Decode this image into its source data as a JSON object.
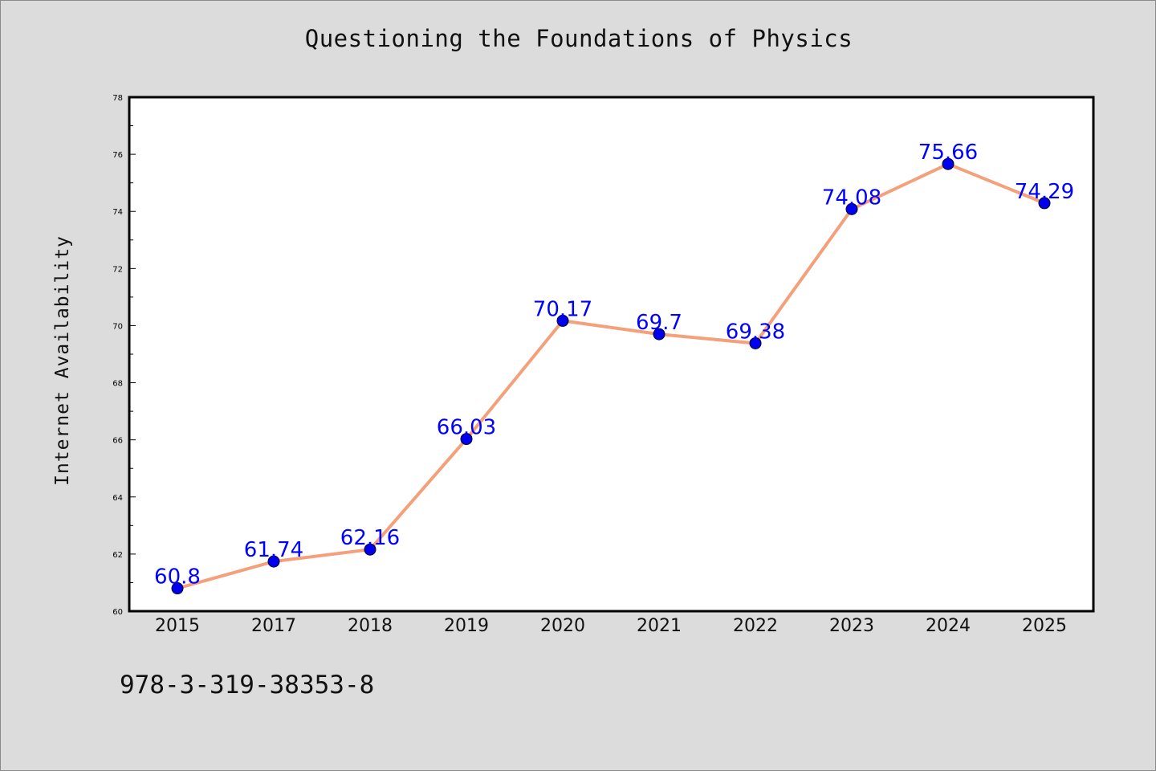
{
  "chart_data": {
    "type": "line",
    "title": "Questioning the Foundations of Physics",
    "xlabel": "",
    "ylabel": "Internet Availability",
    "categories": [
      "2015",
      "2017",
      "2018",
      "2019",
      "2020",
      "2021",
      "2022",
      "2023",
      "2024",
      "2025"
    ],
    "series": [
      {
        "values": [
          60.8,
          61.74,
          62.16,
          66.03,
          70.17,
          69.7,
          69.38,
          74.08,
          75.66,
          74.29
        ],
        "labels": [
          "60.8",
          "61.74",
          "62.16",
          "66.03",
          "70.17",
          "69.7",
          "69.38",
          "74.08",
          "75.66",
          "74.29"
        ],
        "line_color": "#f4a07a",
        "marker_color": "#0000ee"
      }
    ],
    "ylim": [
      60,
      78
    ],
    "yticks": [
      "60",
      "62",
      "64",
      "66",
      "68",
      "70",
      "72",
      "74",
      "76",
      "78"
    ],
    "grid": false,
    "label_color": "#0000ff"
  },
  "footer_text": "978-3-319-38353-8"
}
